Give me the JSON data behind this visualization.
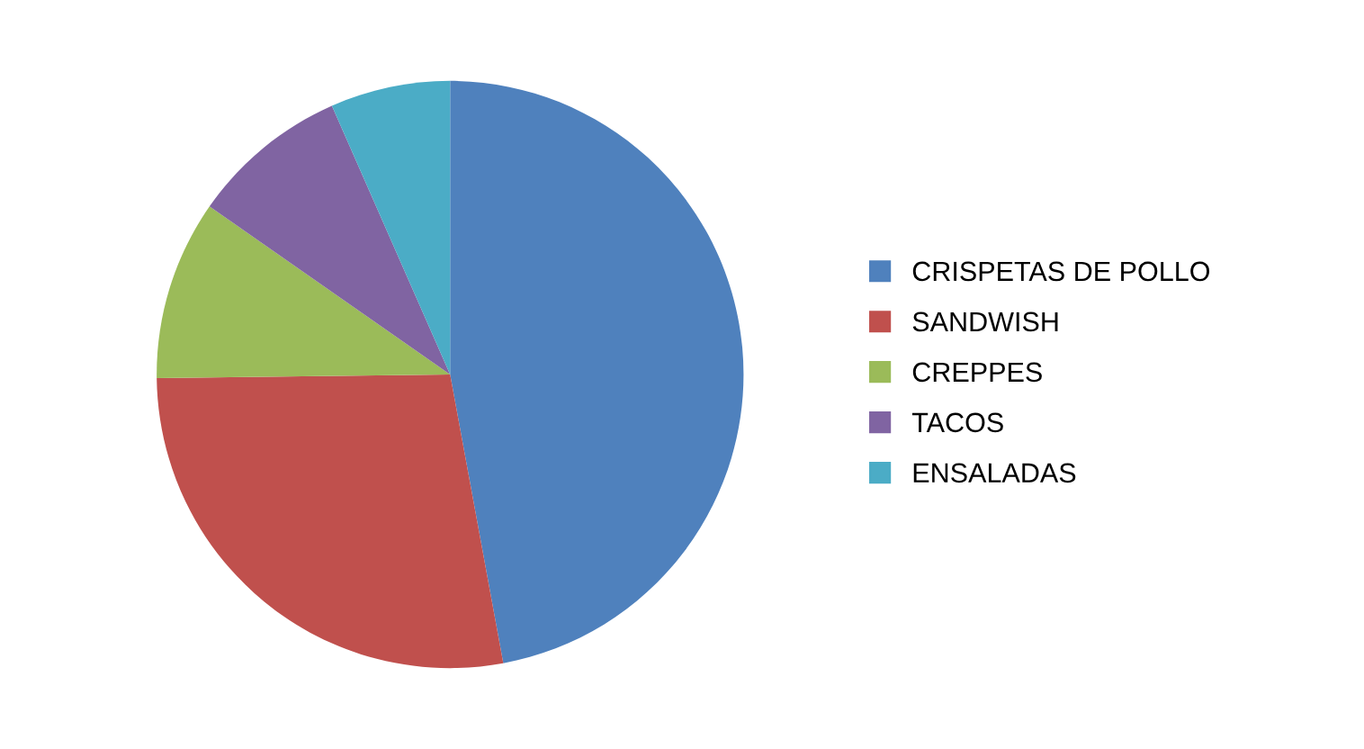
{
  "chart_data": {
    "type": "pie",
    "categories": [
      "CRISPETAS DE POLLO",
      "SANDWISH",
      "CREPPES",
      "TACOS",
      "ENSALADAS"
    ],
    "values": [
      47.1,
      27.7,
      9.9,
      8.7,
      6.6
    ],
    "colors": [
      "#4f81bd",
      "#c0504d",
      "#9bbb59",
      "#8064a2",
      "#4bacc6"
    ],
    "legend": "right"
  }
}
